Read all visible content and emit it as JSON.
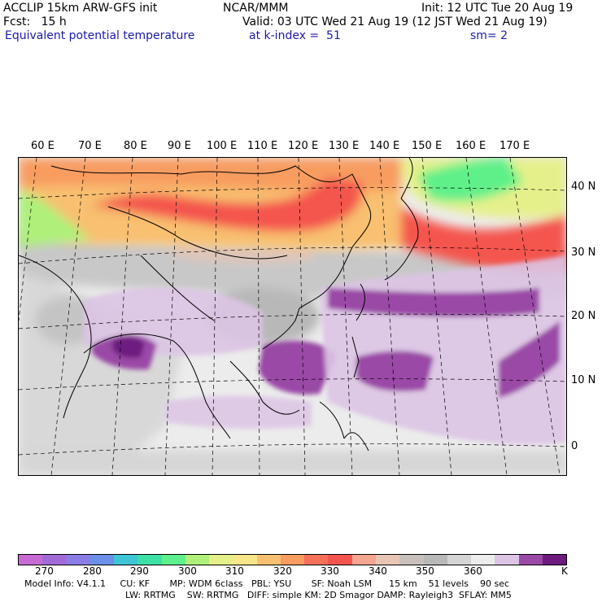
{
  "header": {
    "line1_left": "ACCLIP 15km ARW-GFS init",
    "line1_center": "NCAR/MMM",
    "line1_right": "Init: 12 UTC Tue 20 Aug 19",
    "line2_left": "Fcst:   15 h",
    "line2_right": "Valid: 03 UTC Wed 21 Aug 19 (12 JST Wed 21 Aug 19)",
    "line3_left": "Equivalent potential temperature",
    "line3_center": "at k-index =  51",
    "line3_right": "sm= 2"
  },
  "map": {
    "lon_labels": [
      "60 E",
      "70 E",
      "80 E",
      "90 E",
      "100 E",
      "110 E",
      "120 E",
      "130 E",
      "140 E",
      "150 E",
      "160 E",
      "170 E"
    ],
    "lat_labels": [
      "40 N",
      "30 N",
      "20 N",
      "10 N",
      "0"
    ]
  },
  "colorbar": {
    "colors": [
      "#c86ad4",
      "#a26ad6",
      "#8a7ee6",
      "#6c8fe8",
      "#3ec6d6",
      "#3ee0a6",
      "#5ef08a",
      "#aef07a",
      "#e6f08a",
      "#f8e68a",
      "#f8c070",
      "#f89c60",
      "#f6705a",
      "#f4544e",
      "#f4a690",
      "#e8c4b4",
      "#c8c0bc",
      "#b8b8b8",
      "#d4d4d4",
      "#ececec",
      "#dcc4e4",
      "#9a4aa6",
      "#6e1a80"
    ],
    "tick_labels": [
      "270",
      "280",
      "290",
      "300",
      "310",
      "320",
      "330",
      "340",
      "350",
      "360"
    ],
    "unit": "K"
  },
  "footer": {
    "line1": "Model Info: V4.1.1     CU: KF       MP: WDM 6class   PBL: YSU       SF: Noah LSM      15 km    51 levels    90 sec",
    "line2": "LW: RRTMG    SW: RRTMG   DIFF: simple KM: 2D Smagor DAMP: Rayleigh3  SFLAY: MM5"
  }
}
